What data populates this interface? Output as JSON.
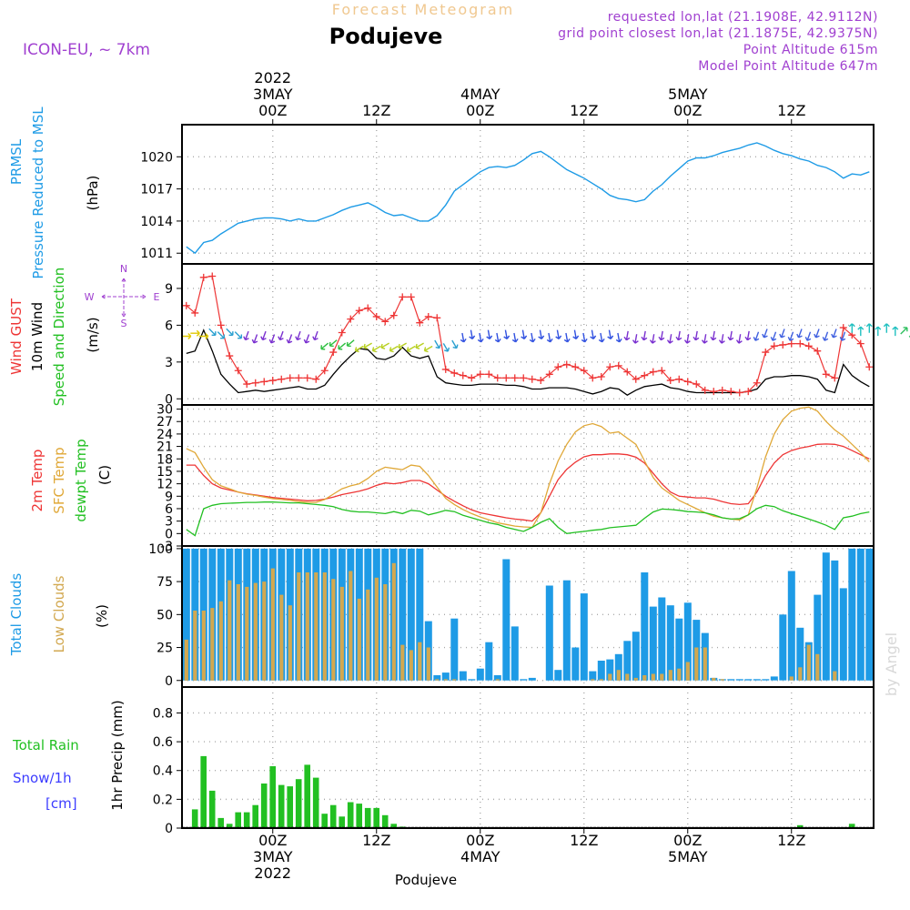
{
  "header": {
    "top_label": "Forecast Meteogram",
    "location": "Podujeve",
    "model": "ICON-EU, ~ 7km",
    "requested": "requested lon,lat (21.1908E, 42.9112N)",
    "gridpoint": "grid point closest lon,lat (21.1875E, 42.9375N)",
    "point_alt": "Point Altitude 615m",
    "model_alt": "Model Point Altitude 647m",
    "footer": "Podujeve",
    "watermark": "by Angel"
  },
  "colors": {
    "pressure": "#1e9be6",
    "gust": "#ee3535",
    "wind": "#000000",
    "temp": "#ee3535",
    "sfc_temp": "#e0a838",
    "dewpoint": "#22c022",
    "total_clouds": "#1e9be6",
    "low_clouds": "#d2a850",
    "rain": "#22c022",
    "snow": "#3c3cff",
    "purple": "#a040d0",
    "grid": "#aaaaaa"
  },
  "chart_data": [
    {
      "type": "line",
      "id": "pressure",
      "ylabel_lines": [
        "PRMSL",
        "Pressure Reduced to MSL"
      ],
      "unit": "(hPa)",
      "ylim": [
        1010,
        1023
      ],
      "yticks": [
        1011,
        1014,
        1017,
        1020
      ],
      "grid": true,
      "x_start": -10,
      "x_step": 1,
      "series": [
        {
          "name": "PRMSL",
          "color_key": "pressure",
          "values": [
            1011.6,
            1011.0,
            1012.0,
            1012.2,
            1012.8,
            1013.3,
            1013.8,
            1014.0,
            1014.2,
            1014.3,
            1014.3,
            1014.2,
            1014.0,
            1014.2,
            1014.0,
            1014.0,
            1014.3,
            1014.6,
            1015.0,
            1015.3,
            1015.5,
            1015.7,
            1015.3,
            1014.8,
            1014.5,
            1014.6,
            1014.3,
            1014.0,
            1014.0,
            1014.5,
            1015.5,
            1016.8,
            1017.4,
            1018.0,
            1018.6,
            1019.0,
            1019.1,
            1019.0,
            1019.2,
            1019.7,
            1020.3,
            1020.5,
            1020.0,
            1019.4,
            1018.8,
            1018.4,
            1018.0,
            1017.5,
            1017.0,
            1016.4,
            1016.1,
            1016.0,
            1015.8,
            1016.0,
            1016.8,
            1017.4,
            1018.2,
            1018.9,
            1019.6,
            1019.9,
            1019.9,
            1020.1,
            1020.4,
            1020.6,
            1020.8,
            1021.1,
            1021.3,
            1021.0,
            1020.6,
            1020.3,
            1020.1,
            1019.8,
            1019.6,
            1019.2,
            1019.0,
            1018.6,
            1018.0,
            1018.4,
            1018.3,
            1018.6
          ]
        }
      ]
    },
    {
      "type": "line",
      "id": "wind",
      "ylabel_lines": [
        "Wind GUST",
        "10m Wind",
        "Speed and Direction"
      ],
      "unit": "(m/s)",
      "compass": {
        "n": "N",
        "s": "S",
        "w": "W",
        "e": "E"
      },
      "ylim": [
        -0.5,
        11
      ],
      "yticks": [
        0,
        3,
        6,
        9
      ],
      "grid": true,
      "x_start": -10,
      "x_step": 1,
      "series": [
        {
          "name": "Wind GUST",
          "color_key": "gust",
          "marker": "+",
          "values": [
            7.6,
            7.0,
            9.9,
            10.0,
            6.0,
            3.5,
            2.3,
            1.2,
            1.3,
            1.4,
            1.5,
            1.6,
            1.7,
            1.7,
            1.7,
            1.6,
            2.3,
            3.8,
            5.4,
            6.5,
            7.2,
            7.4,
            6.7,
            6.3,
            6.8,
            8.3,
            8.3,
            6.2,
            6.7,
            6.6,
            2.4,
            2.1,
            1.9,
            1.7,
            2.0,
            2.0,
            1.7,
            1.7,
            1.7,
            1.7,
            1.6,
            1.5,
            2.0,
            2.6,
            2.8,
            2.6,
            2.3,
            1.7,
            1.8,
            2.6,
            2.7,
            2.2,
            1.6,
            1.9,
            2.2,
            2.3,
            1.5,
            1.6,
            1.4,
            1.2,
            0.7,
            0.6,
            0.7,
            0.6,
            0.5,
            0.6,
            1.3,
            3.8,
            4.3,
            4.4,
            4.5,
            4.5,
            4.3,
            3.9,
            2.0,
            1.7,
            5.8,
            5.2,
            4.5,
            2.6
          ]
        },
        {
          "name": "10m Wind",
          "color_key": "wind",
          "values": [
            3.7,
            3.9,
            5.6,
            3.9,
            2.0,
            1.2,
            0.5,
            0.6,
            0.7,
            0.6,
            0.7,
            0.8,
            0.9,
            1.0,
            0.8,
            0.8,
            1.1,
            2.0,
            2.8,
            3.5,
            4.1,
            4.0,
            3.3,
            3.2,
            3.5,
            4.2,
            3.5,
            3.3,
            3.5,
            1.8,
            1.3,
            1.2,
            1.1,
            1.1,
            1.2,
            1.2,
            1.2,
            1.1,
            1.1,
            1.0,
            0.8,
            0.8,
            0.9,
            0.9,
            0.9,
            0.8,
            0.6,
            0.4,
            0.6,
            0.9,
            0.8,
            0.3,
            0.7,
            1.0,
            1.1,
            1.2,
            0.9,
            0.8,
            0.6,
            0.5,
            0.5,
            0.5,
            0.5,
            0.5,
            0.5,
            0.6,
            0.8,
            1.6,
            1.8,
            1.8,
            1.9,
            1.9,
            1.8,
            1.6,
            0.7,
            0.5,
            2.8,
            1.9,
            1.4,
            1.0
          ]
        }
      ],
      "arrows": [
        {
          "from": -10,
          "to": -8,
          "color": "#e0c800",
          "level": 5.2,
          "angle": 0
        },
        {
          "from": -7,
          "to": -4,
          "color": "#2aa0d0",
          "level": 5.3,
          "angle": 45
        },
        {
          "from": -3,
          "to": 5,
          "color": "#7a30d0",
          "level": 5.0,
          "angle": 110
        },
        {
          "from": 6,
          "to": 9,
          "color": "#2ec040",
          "level": 4.4,
          "angle": 140
        },
        {
          "from": 10,
          "to": 18,
          "color": "#b8d020",
          "level": 4.2,
          "angle": 150
        },
        {
          "from": 19,
          "to": 21,
          "color": "#2aa0d0",
          "level": 4.3,
          "angle": 60
        },
        {
          "from": 22,
          "to": 40,
          "color": "#3050e0",
          "level": 5.1,
          "angle": 80
        },
        {
          "from": 41,
          "to": 55,
          "color": "#7a30d0",
          "level": 5.0,
          "angle": 100
        },
        {
          "from": 56,
          "to": 66,
          "color": "#4060e0",
          "level": 5.2,
          "angle": 110
        },
        {
          "from": 67,
          "to": 72,
          "color": "#20c0c0",
          "level": 5.6,
          "angle": -90
        },
        {
          "from": 73,
          "to": 76,
          "color": "#30c060",
          "level": 5.4,
          "angle": -45
        },
        {
          "from": 77,
          "to": 79,
          "color": "#7a30d0",
          "level": 5.0,
          "angle": 120
        }
      ]
    },
    {
      "type": "line",
      "id": "temperature",
      "ylabel_lines": [
        "2m Temp",
        "SFC Temp",
        "dewpt Temp"
      ],
      "unit": "(C)",
      "ylim": [
        -3,
        31
      ],
      "yticks": [
        -3,
        0,
        3,
        6,
        9,
        12,
        15,
        18,
        21,
        24,
        27,
        30
      ],
      "grid": true,
      "x_start": -10,
      "x_step": 1,
      "series": [
        {
          "name": "2m Temp",
          "color_key": "temp",
          "values": [
            16.5,
            16.5,
            14.0,
            12.0,
            11.0,
            10.5,
            10.0,
            9.6,
            9.3,
            9.0,
            8.7,
            8.5,
            8.3,
            8.1,
            7.9,
            8.0,
            8.3,
            8.8,
            9.4,
            9.8,
            10.2,
            10.8,
            11.6,
            12.2,
            12.0,
            12.3,
            12.8,
            12.8,
            12.0,
            10.5,
            9.0,
            7.8,
            6.7,
            5.7,
            5.0,
            4.6,
            4.2,
            3.8,
            3.5,
            3.3,
            3.0,
            5.0,
            9.0,
            13.0,
            15.5,
            17.2,
            18.5,
            19.0,
            19.0,
            19.2,
            19.2,
            19.0,
            18.4,
            17.0,
            14.5,
            12.0,
            10.0,
            9.0,
            8.8,
            8.6,
            8.6,
            8.3,
            7.7,
            7.2,
            7.0,
            7.2,
            10.0,
            14.0,
            17.0,
            19.0,
            20.0,
            20.6,
            21.0,
            21.5,
            21.6,
            21.5,
            21.0,
            20.0,
            19.0,
            18.0
          ]
        },
        {
          "name": "SFC Temp",
          "color_key": "sfc_temp",
          "values": [
            20.5,
            19.5,
            16.0,
            13.0,
            11.5,
            10.8,
            10.0,
            9.5,
            9.2,
            8.8,
            8.4,
            8.2,
            8.0,
            7.7,
            7.5,
            7.5,
            8.2,
            9.5,
            10.8,
            11.5,
            12.0,
            13.3,
            15.0,
            16.0,
            15.7,
            15.4,
            16.5,
            16.2,
            14.0,
            11.2,
            8.5,
            7.0,
            5.8,
            4.8,
            4.0,
            3.3,
            2.6,
            2.2,
            1.8,
            1.6,
            1.5,
            5.0,
            12.0,
            17.5,
            21.5,
            24.5,
            26.0,
            26.5,
            25.8,
            24.2,
            24.5,
            23.0,
            21.5,
            17.5,
            13.5,
            11.0,
            9.5,
            8.0,
            7.0,
            6.0,
            5.0,
            4.2,
            3.8,
            3.5,
            3.3,
            4.5,
            11.0,
            18.5,
            24.0,
            27.5,
            29.5,
            30.2,
            30.5,
            29.5,
            27.0,
            25.0,
            23.5,
            21.5,
            19.5,
            17.3
          ]
        },
        {
          "name": "dewpt Temp",
          "color_key": "dewpoint",
          "values": [
            1.0,
            -0.5,
            6.0,
            6.8,
            7.2,
            7.3,
            7.4,
            7.5,
            7.5,
            7.6,
            7.6,
            7.5,
            7.4,
            7.4,
            7.2,
            7.0,
            6.8,
            6.5,
            5.8,
            5.4,
            5.2,
            5.2,
            5.0,
            4.8,
            5.3,
            4.8,
            5.6,
            5.4,
            4.5,
            5.0,
            5.6,
            5.3,
            4.4,
            3.8,
            3.2,
            2.6,
            2.2,
            1.5,
            1.0,
            0.5,
            1.5,
            2.7,
            3.6,
            1.5,
            0.0,
            0.3,
            0.5,
            0.8,
            1.0,
            1.4,
            1.6,
            1.8,
            2.0,
            3.7,
            5.2,
            5.9,
            5.8,
            5.6,
            5.3,
            5.2,
            5.0,
            4.5,
            3.8,
            3.5,
            3.6,
            4.5,
            6.0,
            6.8,
            6.5,
            5.5,
            4.8,
            4.2,
            3.5,
            2.8,
            2.0,
            1.0,
            3.8,
            4.2,
            4.8,
            5.2
          ]
        }
      ]
    },
    {
      "type": "bar",
      "id": "clouds",
      "ylabel_lines": [
        "Total Clouds",
        "Low Clouds"
      ],
      "unit": "(%)",
      "ylim": [
        -5,
        102
      ],
      "yticks": [
        0,
        25,
        50,
        75,
        100
      ],
      "grid": true,
      "x_start": -10,
      "x_step": 1,
      "series": [
        {
          "name": "Total Clouds",
          "color_key": "total_clouds",
          "values": [
            100,
            100,
            100,
            100,
            100,
            100,
            100,
            100,
            100,
            100,
            100,
            100,
            100,
            100,
            100,
            100,
            100,
            100,
            100,
            100,
            100,
            100,
            100,
            100,
            100,
            100,
            100,
            100,
            45,
            4,
            6,
            47,
            7,
            1,
            9,
            29,
            4,
            92,
            41,
            1,
            2,
            0,
            72,
            8,
            76,
            25,
            66,
            7,
            15,
            16,
            20,
            30,
            37,
            82,
            56,
            63,
            57,
            47,
            59,
            46,
            36,
            2,
            1,
            1,
            1,
            1,
            1,
            1,
            3,
            50,
            83,
            40,
            29,
            65,
            97,
            91,
            70,
            100,
            100,
            100
          ]
        },
        {
          "name": "Low Clouds",
          "color_key": "low_clouds",
          "values": [
            31,
            53,
            53,
            55,
            60,
            76,
            73,
            71,
            74,
            75,
            85,
            65,
            57,
            82,
            82,
            82,
            82,
            77,
            71,
            83,
            62,
            69,
            78,
            73,
            89,
            27,
            23,
            29,
            25,
            1,
            1,
            1,
            0,
            0,
            0,
            0,
            1,
            0,
            0,
            0,
            0,
            0,
            0,
            0,
            0,
            0,
            0,
            1,
            1,
            5,
            8,
            5,
            2,
            4,
            5,
            5,
            8,
            9,
            14,
            25,
            25,
            2,
            1,
            0,
            0,
            0,
            0,
            0,
            0,
            0,
            3,
            10,
            27,
            20,
            0,
            7,
            0,
            0,
            0,
            0
          ]
        }
      ]
    },
    {
      "type": "bar",
      "id": "precipitation",
      "ylabel_lines": [
        "1hr Precip (mm)"
      ],
      "legend_lines": [
        "Total  Rain",
        "Snow/1h",
        "[cm]"
      ],
      "ylim": [
        0,
        0.98
      ],
      "yticks": [
        0,
        0.2,
        0.4,
        0.6,
        0.8
      ],
      "grid": true,
      "x_start": -10,
      "x_step": 1,
      "series": [
        {
          "name": "Total Rain",
          "color_key": "rain",
          "values": [
            0,
            0.13,
            0.5,
            0.26,
            0.07,
            0.03,
            0.11,
            0.11,
            0.16,
            0.31,
            0.43,
            0.3,
            0.29,
            0.34,
            0.44,
            0.35,
            0.1,
            0.16,
            0.08,
            0.18,
            0.17,
            0.14,
            0.14,
            0.09,
            0.03,
            0.01,
            0,
            0,
            0,
            0,
            0,
            0,
            0,
            0,
            0,
            0,
            0,
            0,
            0,
            0,
            0,
            0,
            0,
            0,
            0,
            0,
            0,
            0,
            0,
            0,
            0,
            0,
            0,
            0,
            0,
            0,
            0,
            0,
            0,
            0,
            0,
            0,
            0,
            0,
            0,
            0,
            0,
            0,
            0,
            0,
            0,
            0.02,
            0,
            0,
            0,
            0,
            0,
            0.03,
            0,
            0
          ]
        }
      ]
    }
  ],
  "time_axis": {
    "top_ticks": [
      {
        "hour": 0,
        "lines": [
          "2022",
          "3MAY",
          "00Z"
        ]
      },
      {
        "hour": 12,
        "lines": [
          "12Z"
        ]
      },
      {
        "hour": 24,
        "lines": [
          "4MAY",
          "00Z"
        ]
      },
      {
        "hour": 36,
        "lines": [
          "12Z"
        ]
      },
      {
        "hour": 48,
        "lines": [
          "5MAY",
          "00Z"
        ]
      },
      {
        "hour": 60,
        "lines": [
          "12Z"
        ]
      }
    ],
    "bottom_ticks": [
      {
        "hour": 0,
        "lines": [
          "00Z",
          "3MAY",
          "2022"
        ]
      },
      {
        "hour": 12,
        "lines": [
          "12Z"
        ]
      },
      {
        "hour": 24,
        "lines": [
          "00Z",
          "4MAY"
        ]
      },
      {
        "hour": 36,
        "lines": [
          "12Z"
        ]
      },
      {
        "hour": 48,
        "lines": [
          "00Z",
          "5MAY"
        ]
      },
      {
        "hour": 60,
        "lines": [
          "12Z"
        ]
      }
    ]
  }
}
